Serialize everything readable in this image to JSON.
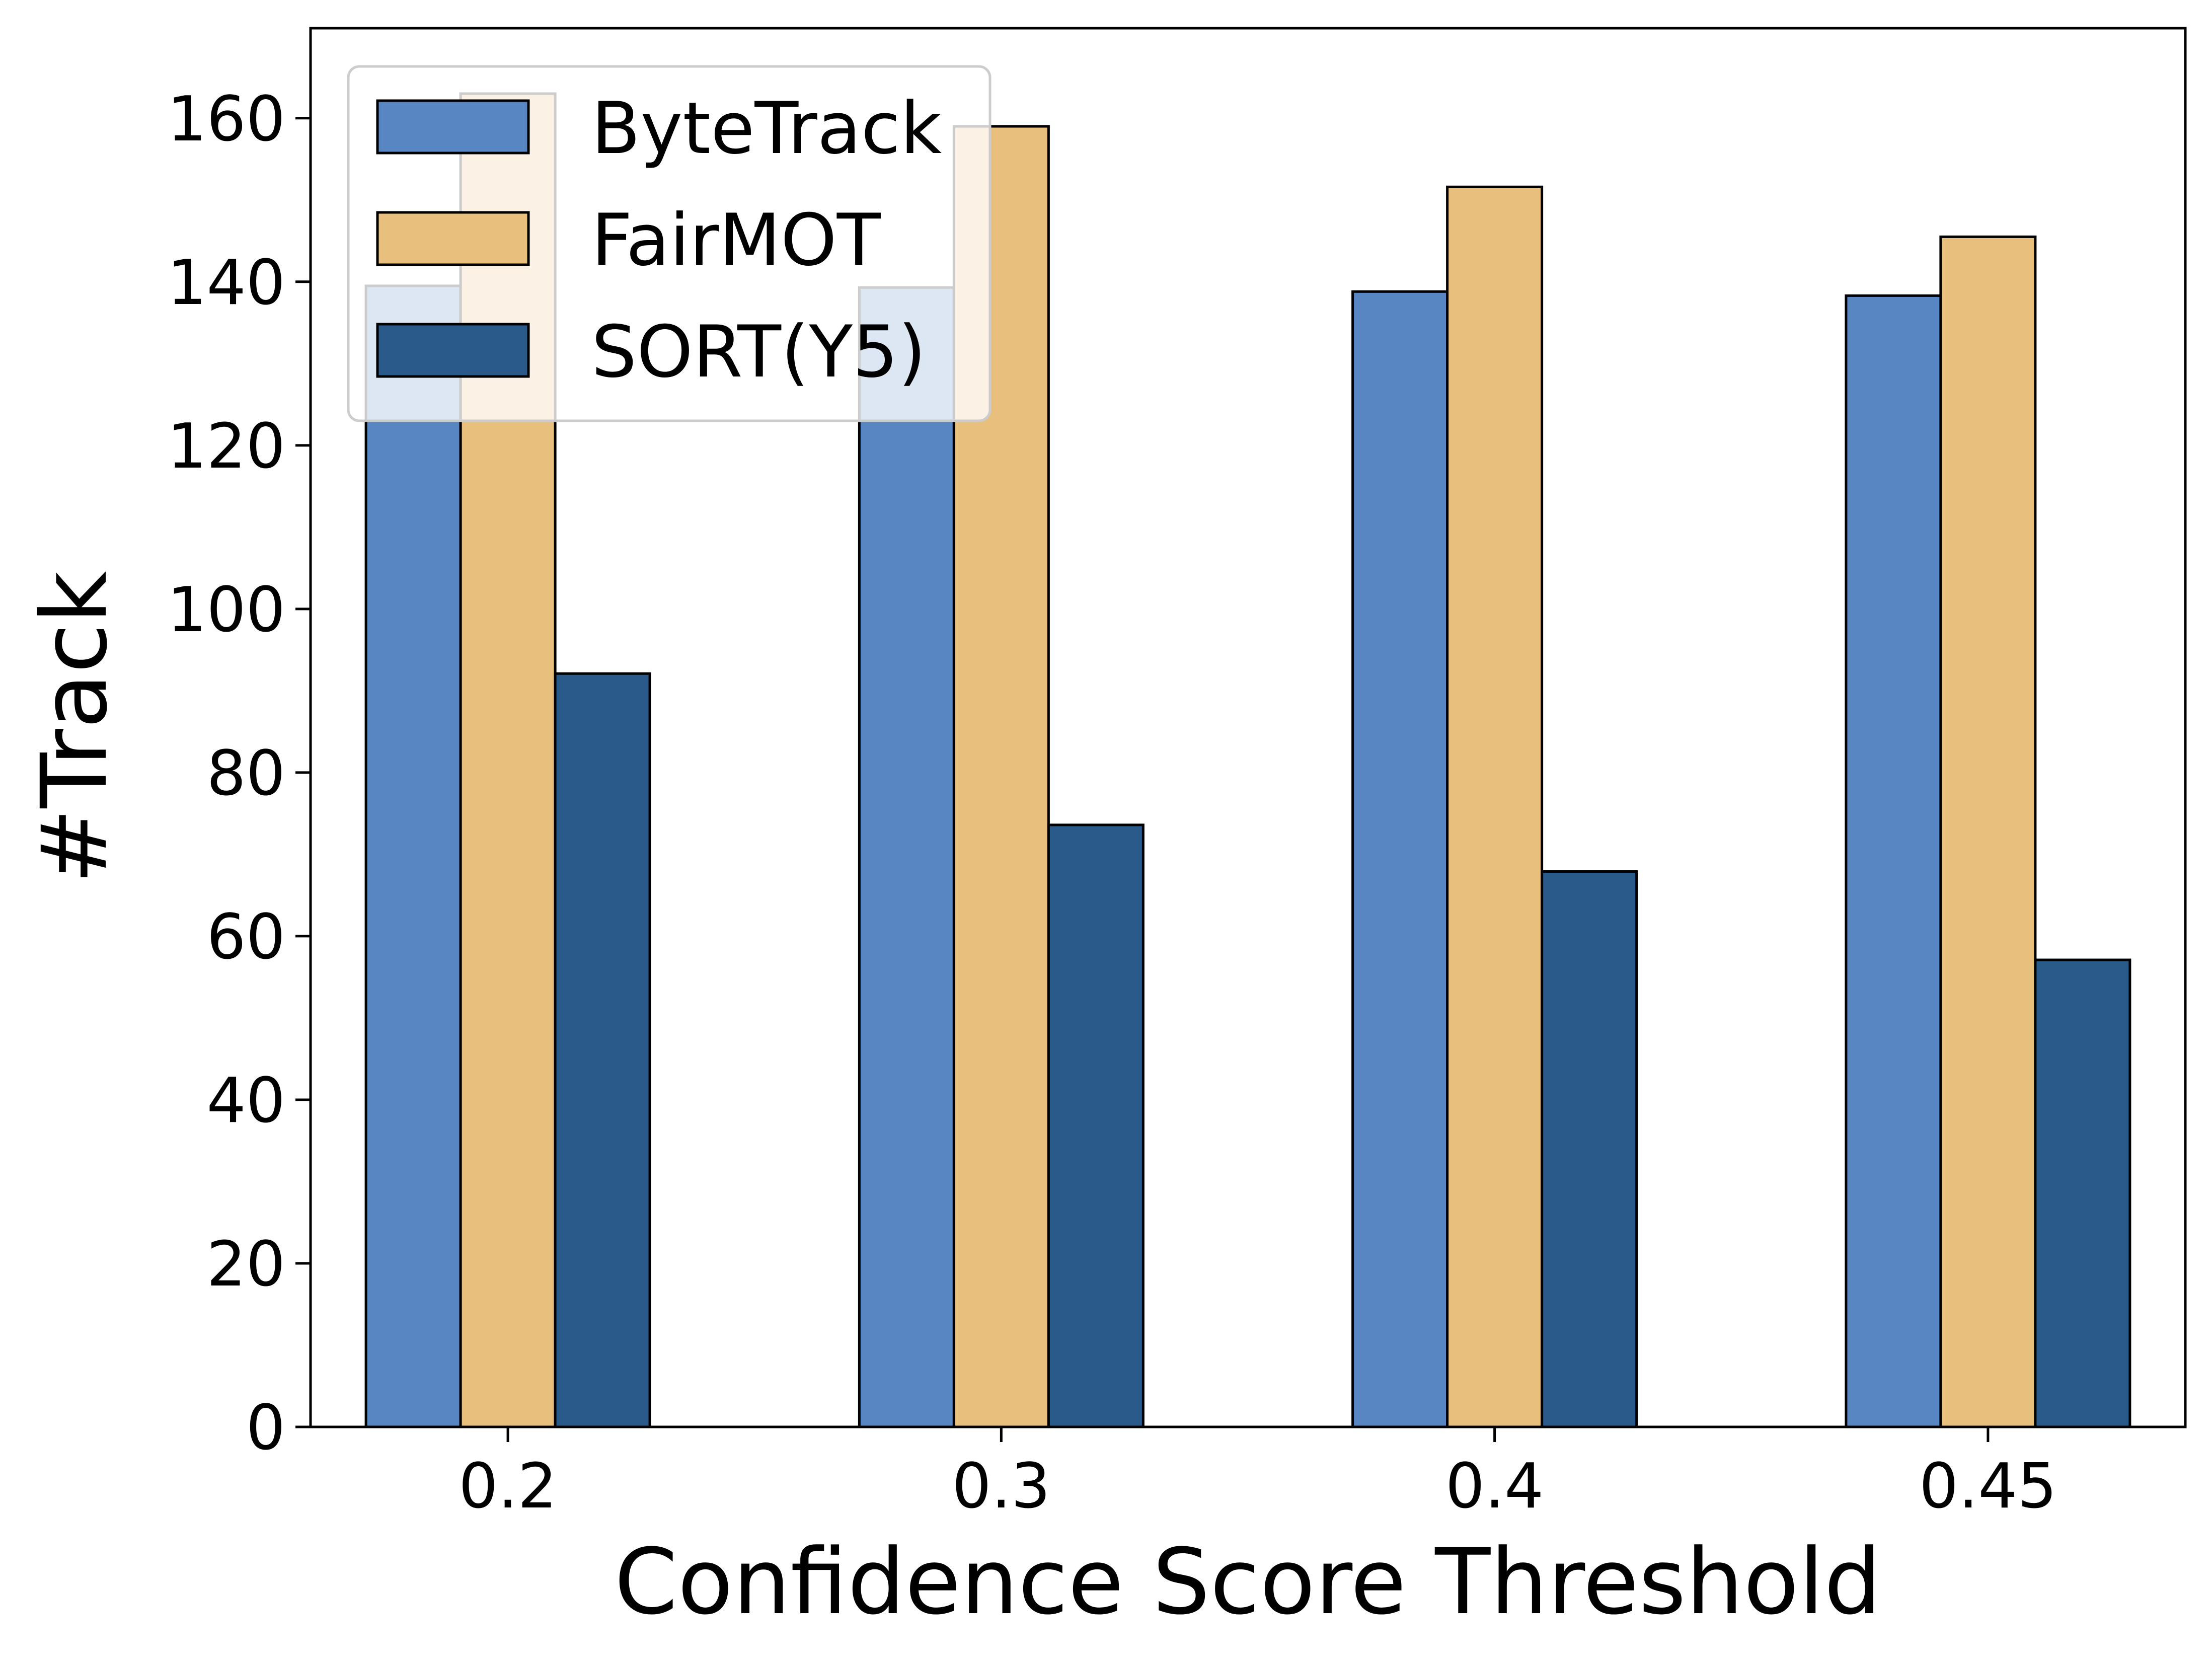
{
  "chart_data": {
    "type": "bar",
    "title": "",
    "xlabel": "Confidence Score Threshold",
    "ylabel": "#Track",
    "categories": [
      "0.2",
      "0.3",
      "0.4",
      "0.45"
    ],
    "ylim": [
      0,
      171
    ],
    "yticks": [
      0,
      20,
      40,
      60,
      80,
      100,
      120,
      140,
      160
    ],
    "grid": false,
    "legend_position": "top-left",
    "series": [
      {
        "name": "ByteTrack",
        "color": "#5886c2",
        "values": [
          139.5,
          139.3,
          138.8,
          138.3
        ]
      },
      {
        "name": "FairMOT",
        "color": "#e8bf7c",
        "values": [
          163.0,
          159.0,
          151.6,
          145.5
        ]
      },
      {
        "name": "SORT(Y5)",
        "color": "#2a5a8a",
        "values": [
          92.1,
          73.6,
          67.9,
          57.1
        ]
      }
    ]
  }
}
